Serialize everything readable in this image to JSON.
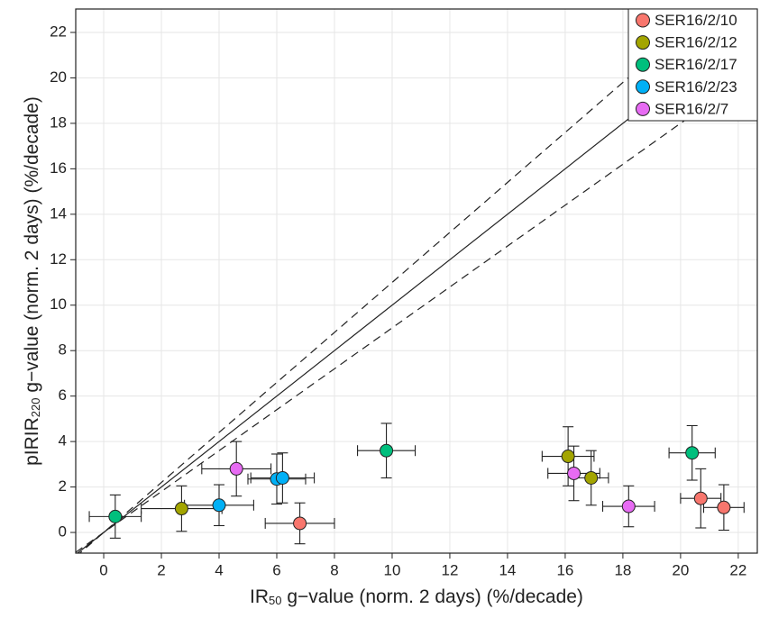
{
  "chart_data": {
    "type": "scatter",
    "x_label": {
      "text": "IR",
      "sub": "50",
      "rest": " g−value (norm. 2 days) (%/decade)"
    },
    "y_label": {
      "text": "pIRIR",
      "sub": "220",
      "rest": " g−value (norm. 2 days) (%/decade)"
    },
    "xlim": [
      -0.97,
      22.66
    ],
    "ylim": [
      -0.91,
      23.03
    ],
    "xticks": [
      0,
      2,
      4,
      6,
      8,
      10,
      12,
      14,
      16,
      18,
      20,
      22
    ],
    "yticks": [
      0,
      2,
      4,
      6,
      8,
      10,
      12,
      14,
      16,
      18,
      20,
      22
    ],
    "grid": true,
    "legend": "top-right",
    "reference_lines": [
      {
        "slope": 1,
        "style": "solid"
      },
      {
        "slope": 1.1,
        "style": "dashed"
      },
      {
        "slope": 0.9,
        "style": "dashed"
      }
    ],
    "series": [
      {
        "name": "SER16/2/10",
        "color": "#F8766D",
        "x": [
          6.8,
          20.7,
          21.5
        ],
        "y": [
          0.4,
          1.5,
          1.1
        ],
        "xerr": [
          1.2,
          0.7,
          0.7
        ],
        "yerr": [
          0.9,
          1.3,
          1.0
        ]
      },
      {
        "name": "SER16/2/12",
        "color": "#A3A500",
        "x": [
          2.7,
          16.1,
          16.9
        ],
        "y": [
          1.05,
          3.35,
          2.4
        ],
        "xerr": [
          1.4,
          0.9,
          0.6
        ],
        "yerr": [
          1.0,
          1.3,
          1.2
        ]
      },
      {
        "name": "SER16/2/17",
        "color": "#00BF7D",
        "x": [
          0.4,
          9.8,
          20.4
        ],
        "y": [
          0.7,
          3.6,
          3.5
        ],
        "xerr": [
          0.9,
          1.0,
          0.8
        ],
        "yerr": [
          0.95,
          1.2,
          1.2
        ]
      },
      {
        "name": "SER16/2/23",
        "color": "#00B0F6",
        "x": [
          4.0,
          6.0,
          6.2
        ],
        "y": [
          1.2,
          2.35,
          2.4
        ],
        "xerr": [
          1.2,
          1.0,
          1.1
        ],
        "yerr": [
          0.9,
          1.1,
          1.1
        ]
      },
      {
        "name": "SER16/2/7",
        "color": "#E76BF3",
        "x": [
          4.6,
          16.3,
          18.2
        ],
        "y": [
          2.8,
          2.6,
          1.15
        ],
        "xerr": [
          1.2,
          0.9,
          0.9
        ],
        "yerr": [
          1.2,
          1.2,
          0.9
        ]
      }
    ]
  }
}
